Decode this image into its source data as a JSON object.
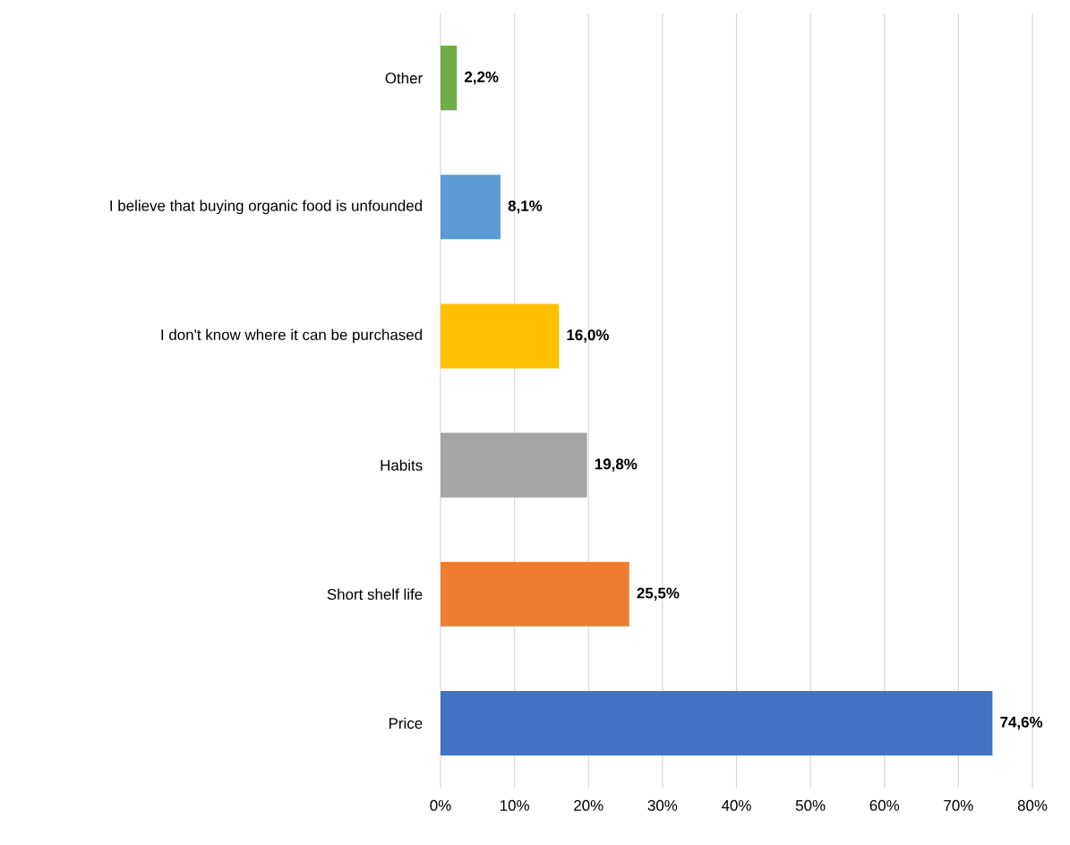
{
  "chart_data": {
    "type": "bar",
    "orientation": "horizontal",
    "categories": [
      "Other",
      "I believe that buying organic food is unfounded",
      "I don't know where it can be purchased",
      "Habits",
      "Short shelf life",
      "Price"
    ],
    "values": [
      2.2,
      8.1,
      16.0,
      19.8,
      25.5,
      74.6
    ],
    "value_labels": [
      "2,2%",
      "8,1%",
      "16,0%",
      "19,8%",
      "25,5%",
      "74,6%"
    ],
    "colors": [
      "#70ad47",
      "#5b9bd5",
      "#ffc000",
      "#a5a5a5",
      "#ed7d31",
      "#4472c4"
    ],
    "xlim": [
      0,
      80
    ],
    "xticks": [
      {
        "value": 0,
        "label": "0%"
      },
      {
        "value": 10,
        "label": "10%"
      },
      {
        "value": 20,
        "label": "20%"
      },
      {
        "value": 30,
        "label": "30%"
      },
      {
        "value": 40,
        "label": "40%"
      },
      {
        "value": 50,
        "label": "50%"
      },
      {
        "value": 60,
        "label": "60%"
      },
      {
        "value": 70,
        "label": "70%"
      },
      {
        "value": 80,
        "label": "80%"
      }
    ],
    "grid": "x"
  }
}
